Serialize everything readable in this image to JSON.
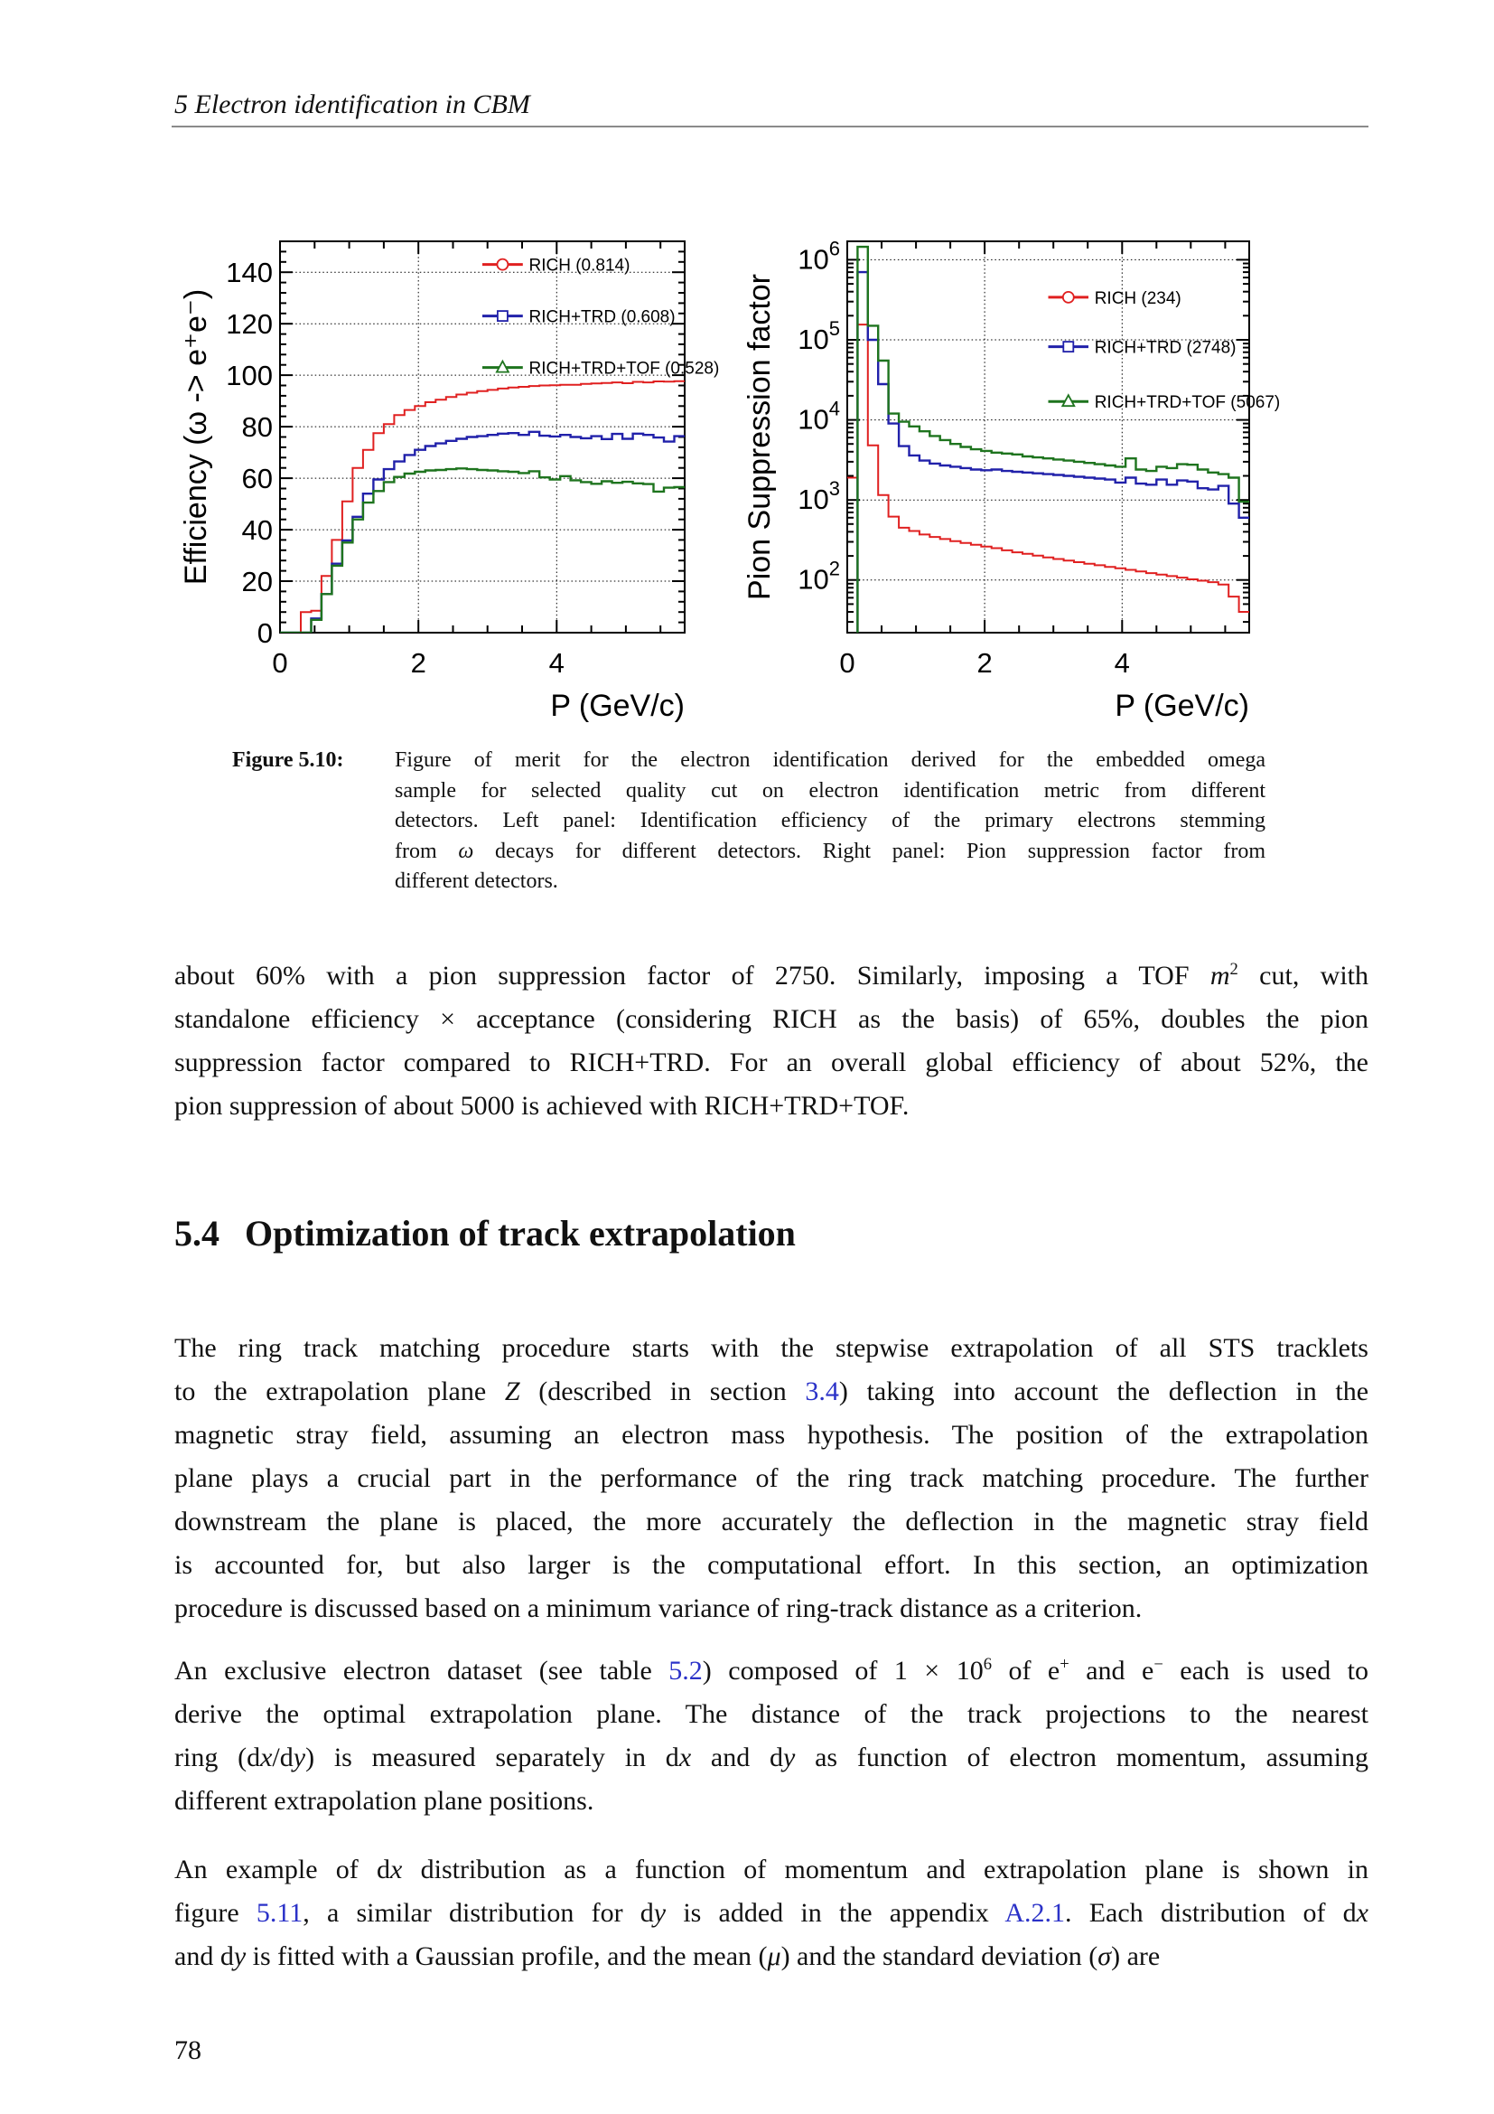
{
  "page": {
    "running_header": "5 Electron identification in CBM",
    "page_number": "78"
  },
  "section": {
    "number": "5.4",
    "title": "Optimization of track extrapolation"
  },
  "caption": {
    "label": "Figure 5.10:",
    "lines": [
      [
        {
          "t": "Figure of merit for the electron identification derived for the embedded omega",
          "s": "p"
        }
      ],
      [
        {
          "t": "sample for selected quality cut on electron identification metric from different",
          "s": "p"
        }
      ],
      [
        {
          "t": "detectors. Left panel: Identification efficiency of the primary electrons stemming",
          "s": "p"
        }
      ],
      [
        {
          "t": "from ",
          "s": "p"
        },
        {
          "t": "ω",
          "s": "i"
        },
        {
          "t": " decays for different detectors. Right panel: Pion suppression factor from",
          "s": "p"
        }
      ],
      [
        {
          "t": "different detectors.",
          "s": "p"
        }
      ]
    ]
  },
  "paragraphs": [
    {
      "lines": [
        [
          {
            "t": "about 60% with a pion suppression factor of 2750.  Similarly, imposing a TOF ",
            "s": "p"
          },
          {
            "t": "m",
            "s": "i"
          },
          {
            "t": "2",
            "s": "sup"
          },
          {
            "t": " cut, with",
            "s": "p"
          }
        ],
        [
          {
            "t": "standalone efficiency × acceptance (considering RICH as the basis) of 65%, doubles the pion",
            "s": "p"
          }
        ],
        [
          {
            "t": "suppression factor compared to RICH+TRD. For an overall global efficiency of about 52%, the",
            "s": "p"
          }
        ],
        [
          {
            "t": "pion suppression of about 5000 is achieved with RICH+TRD+TOF.",
            "s": "p"
          }
        ]
      ]
    },
    {
      "lines": [
        [
          {
            "t": "The ring track matching procedure starts with the stepwise extrapolation of all STS tracklets",
            "s": "p"
          }
        ],
        [
          {
            "t": "to the extrapolation plane ",
            "s": "p"
          },
          {
            "t": "Z",
            "s": "i"
          },
          {
            "t": " (described in section ",
            "s": "p"
          },
          {
            "t": "3.4",
            "s": "l"
          },
          {
            "t": ") taking into account the deflection in the",
            "s": "p"
          }
        ],
        [
          {
            "t": "magnetic stray field, assuming an electron mass hypothesis.  The position of the extrapolation",
            "s": "p"
          }
        ],
        [
          {
            "t": "plane plays a crucial part in the performance of the ring track matching procedure.  The further",
            "s": "p"
          }
        ],
        [
          {
            "t": "downstream the plane is placed, the more accurately the deflection in the magnetic stray field",
            "s": "p"
          }
        ],
        [
          {
            "t": "is accounted for, but also larger is the computational effort.  In this section, an optimization",
            "s": "p"
          }
        ],
        [
          {
            "t": "procedure is discussed based on a minimum variance of ring-track distance as a criterion.",
            "s": "p"
          }
        ]
      ]
    },
    {
      "lines": [
        [
          {
            "t": "An exclusive electron dataset (see table ",
            "s": "p"
          },
          {
            "t": "5.2",
            "s": "l"
          },
          {
            "t": ") composed of 1 × 10",
            "s": "p"
          },
          {
            "t": "6",
            "s": "sup"
          },
          {
            "t": " of e",
            "s": "p"
          },
          {
            "t": "+",
            "s": "sup"
          },
          {
            "t": " and e",
            "s": "p"
          },
          {
            "t": "−",
            "s": "sup"
          },
          {
            "t": " each is used to",
            "s": "p"
          }
        ],
        [
          {
            "t": "derive the optimal extrapolation plane.  The distance of the track projections to the nearest",
            "s": "p"
          }
        ],
        [
          {
            "t": "ring (d",
            "s": "p"
          },
          {
            "t": "x",
            "s": "i"
          },
          {
            "t": "/d",
            "s": "p"
          },
          {
            "t": "y",
            "s": "i"
          },
          {
            "t": ") is measured separately in d",
            "s": "p"
          },
          {
            "t": "x",
            "s": "i"
          },
          {
            "t": " and d",
            "s": "p"
          },
          {
            "t": "y",
            "s": "i"
          },
          {
            "t": " as function of electron momentum, assuming",
            "s": "p"
          }
        ],
        [
          {
            "t": "different extrapolation plane positions.",
            "s": "p"
          }
        ]
      ]
    },
    {
      "lines": [
        [
          {
            "t": "An example of d",
            "s": "p"
          },
          {
            "t": "x",
            "s": "i"
          },
          {
            "t": " distribution as a function of momentum and extrapolation plane is shown in",
            "s": "p"
          }
        ],
        [
          {
            "t": "figure ",
            "s": "p"
          },
          {
            "t": "5.11",
            "s": "l"
          },
          {
            "t": ", a similar distribution for d",
            "s": "p"
          },
          {
            "t": "y",
            "s": "i"
          },
          {
            "t": " is added in the appendix ",
            "s": "p"
          },
          {
            "t": "A.2.1",
            "s": "l"
          },
          {
            "t": ". Each distribution of d",
            "s": "p"
          },
          {
            "t": "x",
            "s": "i"
          }
        ],
        [
          {
            "t": "and d",
            "s": "p"
          },
          {
            "t": "y",
            "s": "i"
          },
          {
            "t": " is fitted with a Gaussian profile, and the mean (",
            "s": "p"
          },
          {
            "t": "μ",
            "s": "i"
          },
          {
            "t": ") and the standard deviation (",
            "s": "p"
          },
          {
            "t": "σ",
            "s": "i"
          },
          {
            "t": ") are",
            "s": "p"
          }
        ]
      ]
    }
  ],
  "chart_data": [
    {
      "id": "eff",
      "type": "line",
      "subtype": "step-histogram",
      "title": "",
      "ylabel": "Efficiency (ω -> e⁺e⁻)",
      "xlabel": "P (GeV/c)",
      "xlim": [
        0,
        5.85
      ],
      "ylim": [
        0,
        152
      ],
      "xticks": [
        0,
        2,
        4
      ],
      "ymajors": [
        0,
        20,
        40,
        60,
        80,
        100,
        120,
        140
      ],
      "yminor": 4,
      "xminor": 0.5,
      "grid_x": [
        2,
        4
      ],
      "grid": true,
      "legend_position": "upper-right-inside",
      "bin_width": 0.15,
      "legend_y": [
        143,
        123,
        103
      ],
      "legend_x": [
        0.5,
        0.6,
        0.615
      ],
      "frame": {
        "l": 160,
        "r": 608,
        "t": 107,
        "b": 540
      },
      "ytitle_x": 78,
      "series": [
        {
          "name": "RICH (0.814)",
          "color": "#e02020",
          "marker": "circle",
          "width": 2,
          "values": [
            0,
            0,
            8,
            8.5,
            22,
            36,
            51,
            64,
            71,
            77.5,
            81,
            84.5,
            86.5,
            88,
            89.5,
            90.5,
            91.5,
            92.5,
            93.2,
            93.8,
            94.3,
            94.8,
            95.2,
            95.5,
            95.8,
            96,
            96.1,
            96.3,
            96.3,
            96.6,
            96.8,
            97,
            97.2,
            96.9,
            97.4,
            97.2,
            97.6,
            97.5,
            97.7
          ]
        },
        {
          "name": "RICH+TRD (0.608)",
          "color": "#2121aa",
          "marker": "square",
          "width": 2.4,
          "values": [
            0,
            0,
            0,
            5.5,
            15,
            26.8,
            35.8,
            45,
            54,
            59.5,
            63.5,
            66.5,
            69,
            71,
            72.5,
            73.5,
            74.5,
            75.3,
            76,
            76.3,
            76.8,
            77.3,
            77.5,
            76.8,
            78,
            76.5,
            76.2,
            76.8,
            76,
            75.5,
            76.3,
            75.2,
            77.2,
            75.3,
            77.3,
            76.8,
            75.8,
            74.2,
            76.3
          ]
        },
        {
          "name": "RICH+TRD+TOF (0.528)",
          "color": "#1e741e",
          "marker": "triangle",
          "width": 2.4,
          "values": [
            0,
            0,
            0,
            5,
            15,
            26,
            35,
            44,
            50.5,
            55,
            58.5,
            60.5,
            61.8,
            62.5,
            63,
            63.2,
            63.5,
            63.8,
            63.5,
            63.2,
            63,
            62.7,
            62.5,
            62,
            62.7,
            60.3,
            59.5,
            60.8,
            59.2,
            58.5,
            57.8,
            58.8,
            58.2,
            58.6,
            58,
            57.7,
            54.8,
            56.3,
            56.5
          ]
        }
      ]
    },
    {
      "id": "pion",
      "type": "line",
      "subtype": "step-histogram",
      "log_y": true,
      "title": "",
      "ylabel": "Pion Suppression factor",
      "xlabel": "P (GeV/c)",
      "xlim": [
        0,
        5.85
      ],
      "ylim": [
        22,
        1700000
      ],
      "xticks": [
        0,
        2,
        4
      ],
      "ydecades": [
        2,
        3,
        4,
        5,
        6
      ],
      "xminor": 0.5,
      "grid_x": [
        2,
        4
      ],
      "grid": true,
      "legend_position": "upper-right-inside",
      "bin_width": 0.15,
      "legend_y": [
        340000,
        82000,
        17000
      ],
      "legend_x": [
        0.5,
        0.6,
        0.615
      ],
      "frame": {
        "l": 148,
        "r": 593,
        "t": 107,
        "b": 540
      },
      "ytitle_x": 62,
      "series": [
        {
          "name": "RICH (234)",
          "color": "#e02020",
          "marker": "circle",
          "width": 2,
          "values": [
            1900,
            155000,
            4800,
            1150,
            620,
            450,
            410,
            370,
            345,
            325,
            305,
            290,
            275,
            262,
            250,
            235,
            222,
            212,
            202,
            192,
            183,
            175,
            167,
            160,
            153,
            146,
            140,
            134,
            128,
            122,
            117,
            112,
            107,
            102,
            98,
            94,
            88,
            62,
            40
          ]
        },
        {
          "name": "RICH+TRD (2748)",
          "color": "#2121aa",
          "marker": "square",
          "width": 2.4,
          "values": [
            20,
            700000,
            100000,
            28000,
            9000,
            4700,
            3600,
            3100,
            2850,
            2700,
            2600,
            2500,
            2400,
            2350,
            2400,
            2300,
            2250,
            2200,
            2150,
            2100,
            2050,
            2000,
            1950,
            1900,
            1850,
            1800,
            1650,
            1900,
            1600,
            1550,
            1800,
            1550,
            1750,
            1700,
            1400,
            1350,
            1500,
            900,
            600
          ]
        },
        {
          "name": "RICH+TRD+TOF (5067)",
          "color": "#1e741e",
          "marker": "triangle",
          "width": 2.4,
          "values": [
            18,
            1450000,
            150000,
            55000,
            12000,
            9500,
            8300,
            7200,
            6300,
            5600,
            5000,
            4600,
            4300,
            4100,
            3900,
            3800,
            3700,
            3500,
            3400,
            3300,
            3200,
            3100,
            3000,
            2900,
            2800,
            2700,
            2600,
            3300,
            2400,
            2300,
            2600,
            2500,
            2800,
            2750,
            2400,
            2200,
            2100,
            1900,
            950
          ]
        }
      ]
    }
  ]
}
